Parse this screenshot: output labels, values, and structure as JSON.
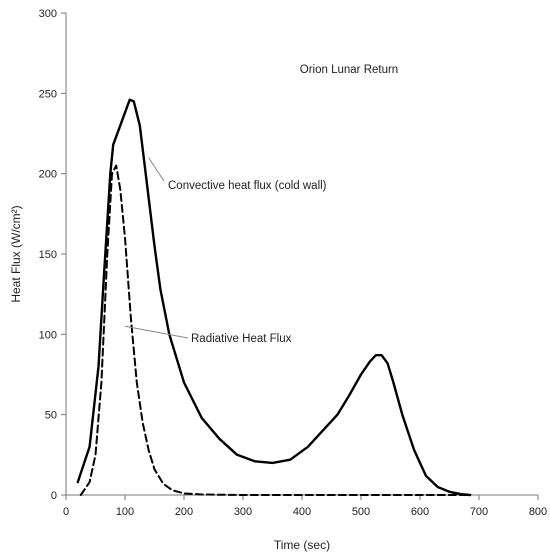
{
  "chart_data": {
    "type": "line",
    "title": "Orion Lunar Return",
    "xlabel": "Time (sec)",
    "ylabel": "Heat Flux (W/cm²)",
    "xlim": [
      0,
      800
    ],
    "ylim": [
      0,
      300
    ],
    "xticks": [
      0,
      100,
      200,
      300,
      400,
      500,
      600,
      700,
      800
    ],
    "yticks": [
      0,
      50,
      100,
      150,
      200,
      250,
      300
    ],
    "grid": false,
    "legend": "none",
    "series": [
      {
        "name": "Convective heat flux (cold wall)",
        "style": "solid",
        "color": "#000000",
        "x": [
          20,
          40,
          55,
          65,
          75,
          80,
          90,
          100,
          108,
          115,
          125,
          135,
          150,
          160,
          175,
          200,
          230,
          260,
          290,
          320,
          350,
          380,
          410,
          430,
          460,
          480,
          500,
          515,
          525,
          535,
          545,
          555,
          570,
          590,
          610,
          630,
          650,
          670,
          685
        ],
        "y": [
          8,
          30,
          80,
          140,
          200,
          218,
          228,
          238,
          246,
          245,
          230,
          200,
          155,
          128,
          100,
          70,
          48,
          35,
          25,
          21,
          20,
          22,
          30,
          38,
          50,
          62,
          75,
          83,
          87,
          87,
          82,
          70,
          50,
          28,
          12,
          5,
          2,
          0.5,
          0
        ]
      },
      {
        "name": "Radiative Heat Flux",
        "style": "dashed",
        "color": "#000000",
        "x": [
          25,
          40,
          50,
          60,
          70,
          78,
          85,
          92,
          100,
          110,
          120,
          130,
          140,
          150,
          165,
          180,
          200,
          230,
          300,
          400,
          500,
          600,
          680
        ],
        "y": [
          0,
          8,
          25,
          70,
          150,
          200,
          205,
          190,
          160,
          110,
          70,
          45,
          28,
          16,
          7,
          3,
          1,
          0.3,
          0,
          0,
          0,
          0,
          0
        ]
      }
    ],
    "annotations": [
      {
        "text": "Convective heat flux (cold wall)",
        "points_to": [
          140,
          210
        ]
      },
      {
        "text": "Radiative Heat Flux",
        "points_to": [
          100,
          105
        ]
      }
    ]
  }
}
